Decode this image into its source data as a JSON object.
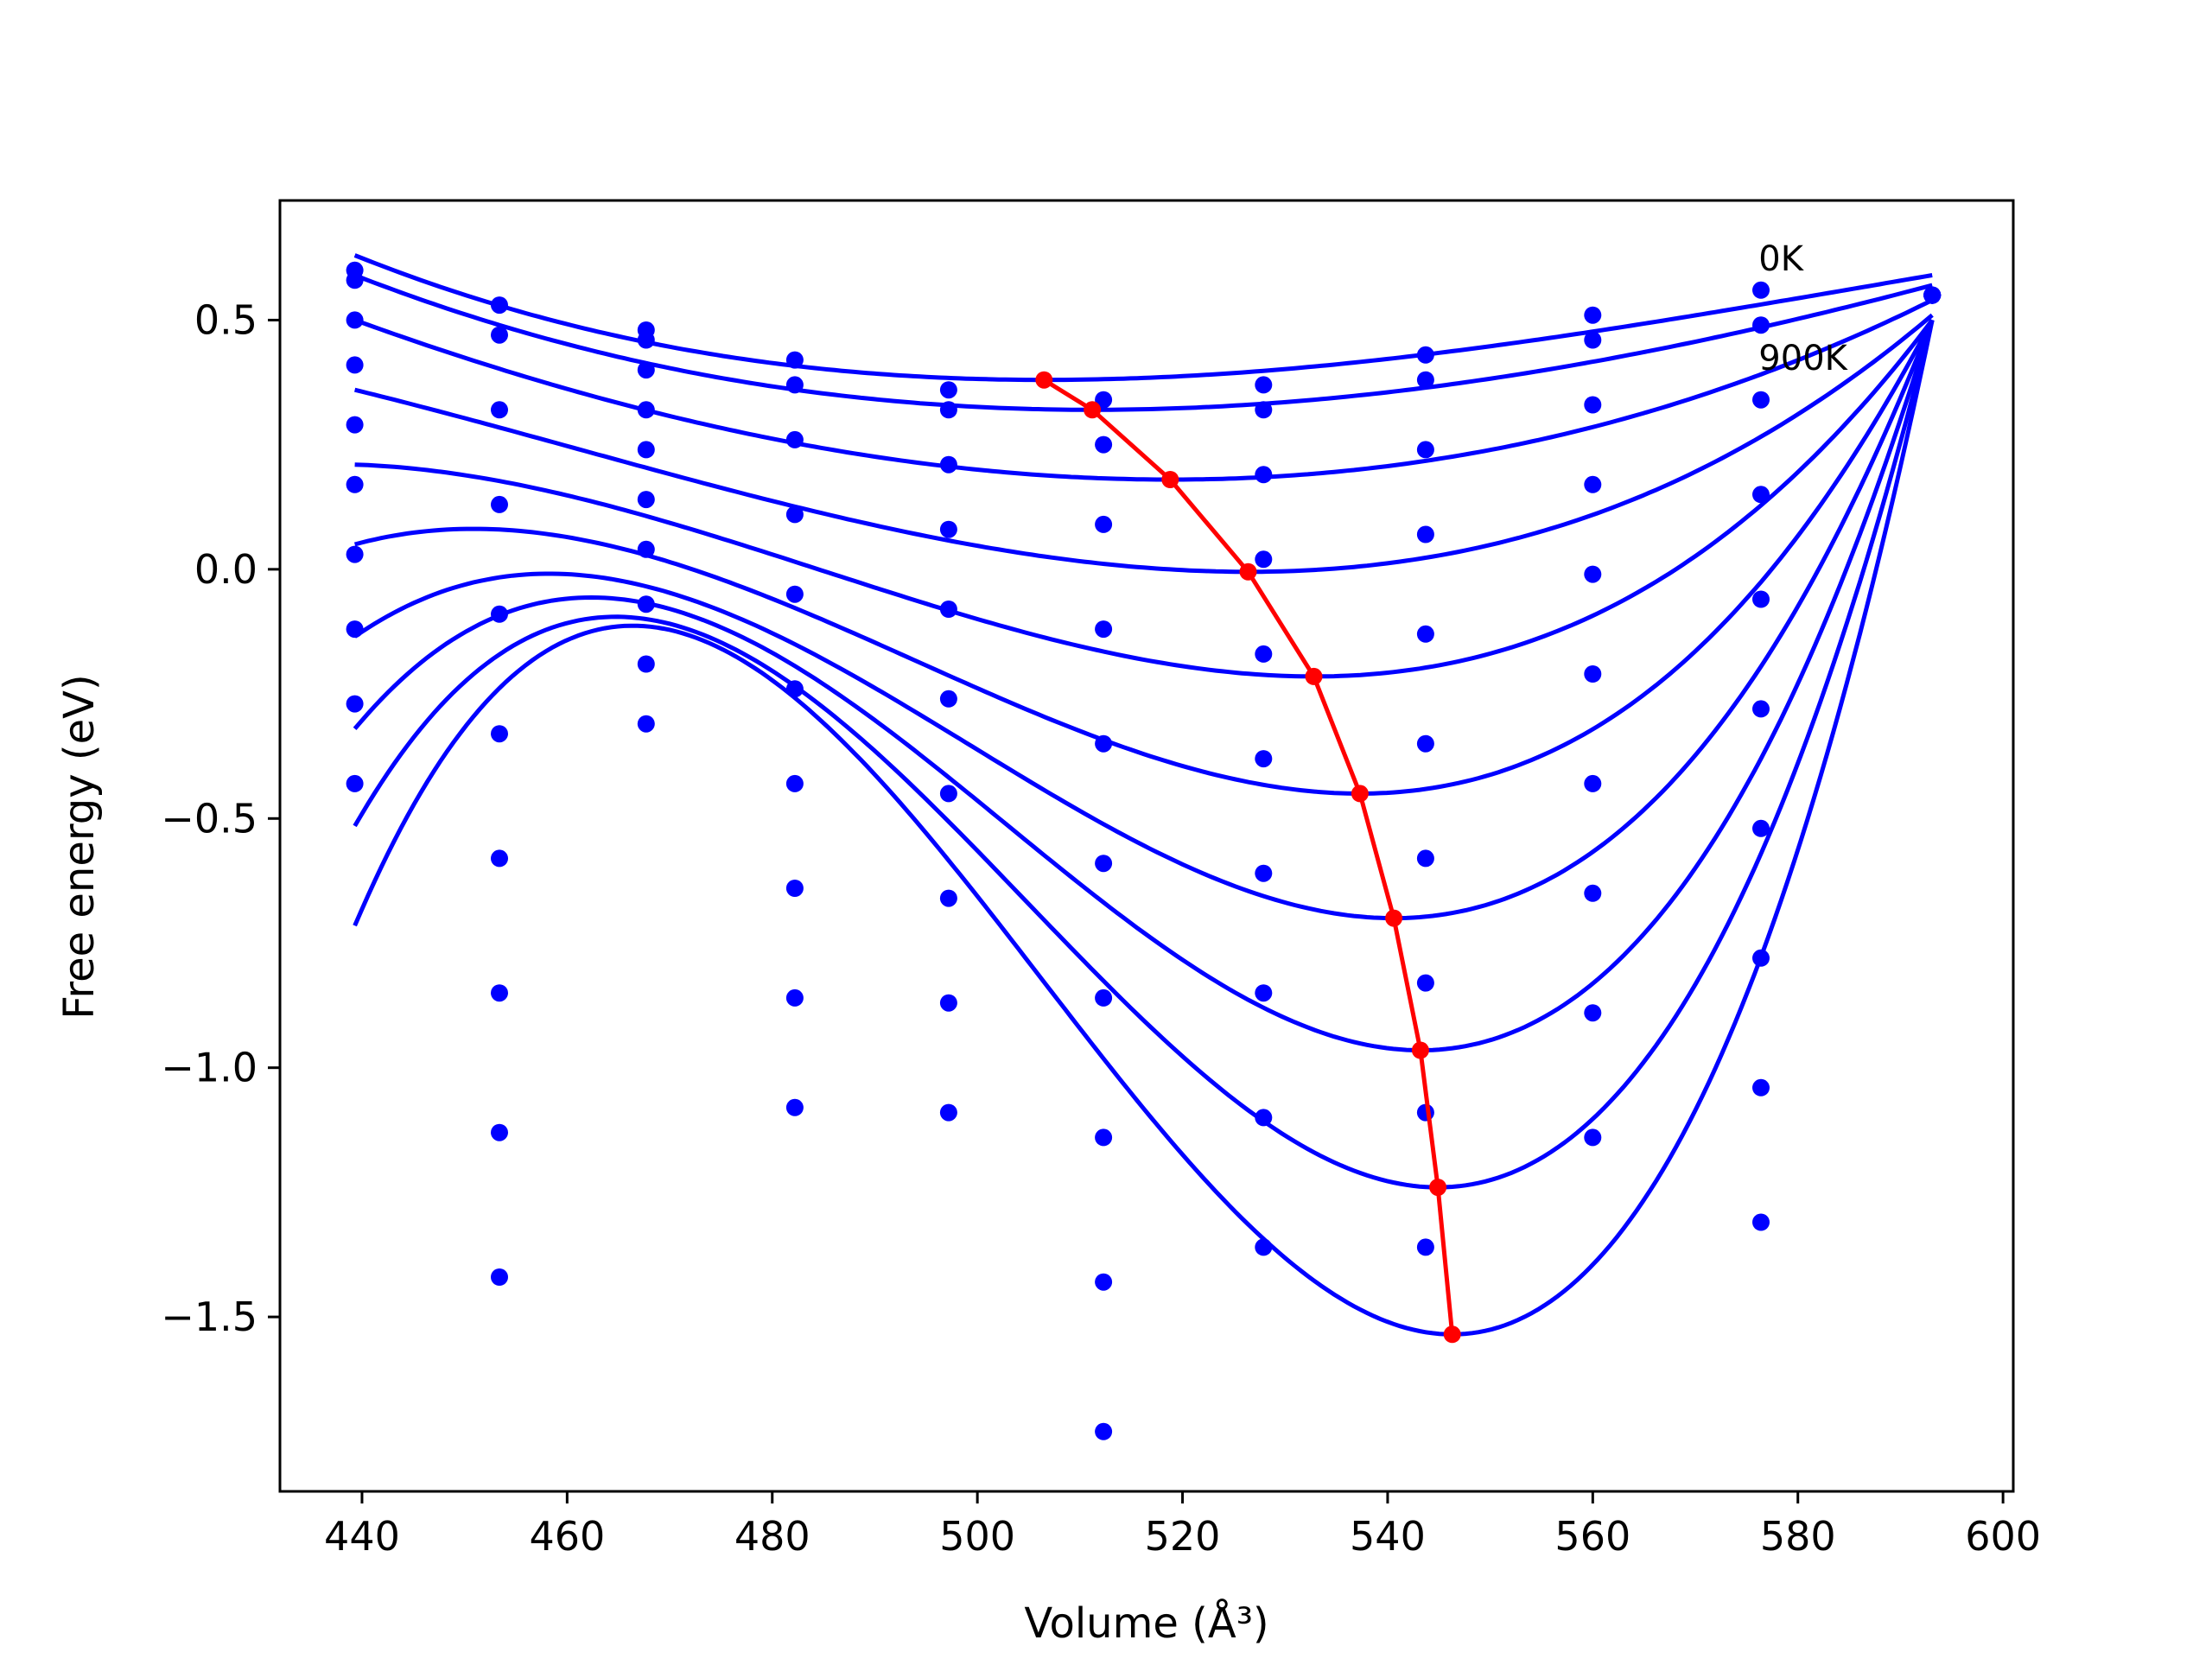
{
  "chart_data": {
    "type": "scatter",
    "title": "",
    "xlabel": "Volume (Å³)",
    "ylabel": "Free energy (eV)",
    "xlim": [
      432,
      601
    ],
    "ylim": [
      -1.85,
      0.74
    ],
    "xticks": [
      440,
      460,
      480,
      500,
      520,
      540,
      560,
      580,
      600
    ],
    "xtick_labels": [
      "440",
      "460",
      "480",
      "500",
      "520",
      "540",
      "560",
      "580",
      "600"
    ],
    "yticks": [
      0.5,
      0.0,
      -0.5,
      -1.0,
      -1.5
    ],
    "ytick_labels": [
      "0.5",
      "0.0",
      "−0.5",
      "−1.0",
      "−1.5"
    ],
    "grid": false,
    "annotations": [
      {
        "text": "0K",
        "x": 576,
        "y": 0.6
      },
      {
        "text": "900K",
        "x": 576,
        "y": 0.4
      }
    ],
    "colors": {
      "fit": "#0000ff",
      "points": "#0000ff",
      "minimum": "#ff0000",
      "axes": "#000000"
    },
    "x_points": [
      439.3,
      453.4,
      467.7,
      482.2,
      497.2,
      512.3,
      527.9,
      543.7,
      560.0,
      576.4,
      593.1
    ],
    "series": [
      {
        "values": [
          0.6,
          0.53,
          0.48,
          0.42,
          0.36,
          0.34,
          0.37,
          0.43,
          0.51,
          0.56,
          0.55
        ]
      },
      {
        "values": [
          0.58,
          0.47,
          0.46,
          0.37,
          0.32,
          0.25,
          0.32,
          0.38,
          0.46,
          0.49,
          0.55
        ]
      },
      {
        "values": [
          0.5,
          0.32,
          0.4,
          0.26,
          0.21,
          0.09,
          0.19,
          0.24,
          0.33,
          0.34,
          0.55
        ]
      },
      {
        "values": [
          0.41,
          0.13,
          0.32,
          0.11,
          0.08,
          -0.12,
          0.02,
          0.07,
          0.17,
          0.15,
          0.55
        ]
      },
      {
        "values": [
          0.29,
          -0.09,
          0.24,
          -0.05,
          -0.08,
          -0.35,
          -0.17,
          -0.13,
          -0.01,
          -0.06,
          0.55
        ]
      },
      {
        "values": [
          0.17,
          -0.33,
          0.14,
          -0.24,
          -0.26,
          -0.59,
          -0.38,
          -0.35,
          -0.21,
          -0.28,
          0.55
        ]
      },
      {
        "values": [
          0.03,
          -0.58,
          0.04,
          -0.43,
          -0.45,
          -0.86,
          -0.61,
          -0.58,
          -0.43,
          -0.52,
          0.55
        ]
      },
      {
        "values": [
          -0.12,
          -0.85,
          -0.07,
          -0.64,
          -0.66,
          -1.14,
          -0.85,
          -0.83,
          -0.65,
          -0.78,
          0.55
        ]
      },
      {
        "values": [
          -0.27,
          -1.13,
          -0.19,
          -0.86,
          -0.87,
          -1.43,
          -1.1,
          -1.09,
          -0.89,
          -1.04,
          0.55
        ]
      },
      {
        "values": [
          -0.43,
          -1.42,
          -0.31,
          -1.08,
          -1.09,
          -1.73,
          -1.36,
          -1.36,
          -1.14,
          -1.31,
          0.55
        ]
      }
    ],
    "fits": [
      {
        "min_x": 506.5,
        "min_y": 0.38,
        "left_y": 0.63,
        "right_y": 0.59
      },
      {
        "min_x": 511.2,
        "min_y": 0.32,
        "left_y": 0.59,
        "right_y": 0.57
      },
      {
        "min_x": 518.8,
        "min_y": 0.18,
        "left_y": 0.5,
        "right_y": 0.54
      },
      {
        "min_x": 526.4,
        "min_y": -0.005,
        "left_y": 0.36,
        "right_y": 0.51
      },
      {
        "min_x": 532.8,
        "min_y": -0.215,
        "left_y": 0.21,
        "right_y": 0.5
      },
      {
        "min_x": 537.3,
        "min_y": -0.45,
        "left_y": 0.05,
        "right_y": 0.5
      },
      {
        "min_x": 540.6,
        "min_y": -0.7,
        "left_y": -0.135,
        "right_y": 0.5
      },
      {
        "min_x": 543.2,
        "min_y": -0.965,
        "left_y": -0.32,
        "right_y": 0.5
      },
      {
        "min_x": 544.9,
        "min_y": -1.24,
        "left_y": -0.515,
        "right_y": 0.5
      },
      {
        "min_x": 546.3,
        "min_y": -1.535,
        "left_y": -0.715,
        "right_y": 0.5
      }
    ],
    "minimum_line": {
      "x": [
        506.5,
        511.2,
        518.8,
        526.4,
        532.8,
        537.3,
        540.6,
        543.2,
        544.9,
        546.3
      ],
      "y": [
        0.38,
        0.32,
        0.18,
        -0.005,
        -0.215,
        -0.45,
        -0.7,
        -0.965,
        -1.24,
        -1.535
      ]
    }
  }
}
